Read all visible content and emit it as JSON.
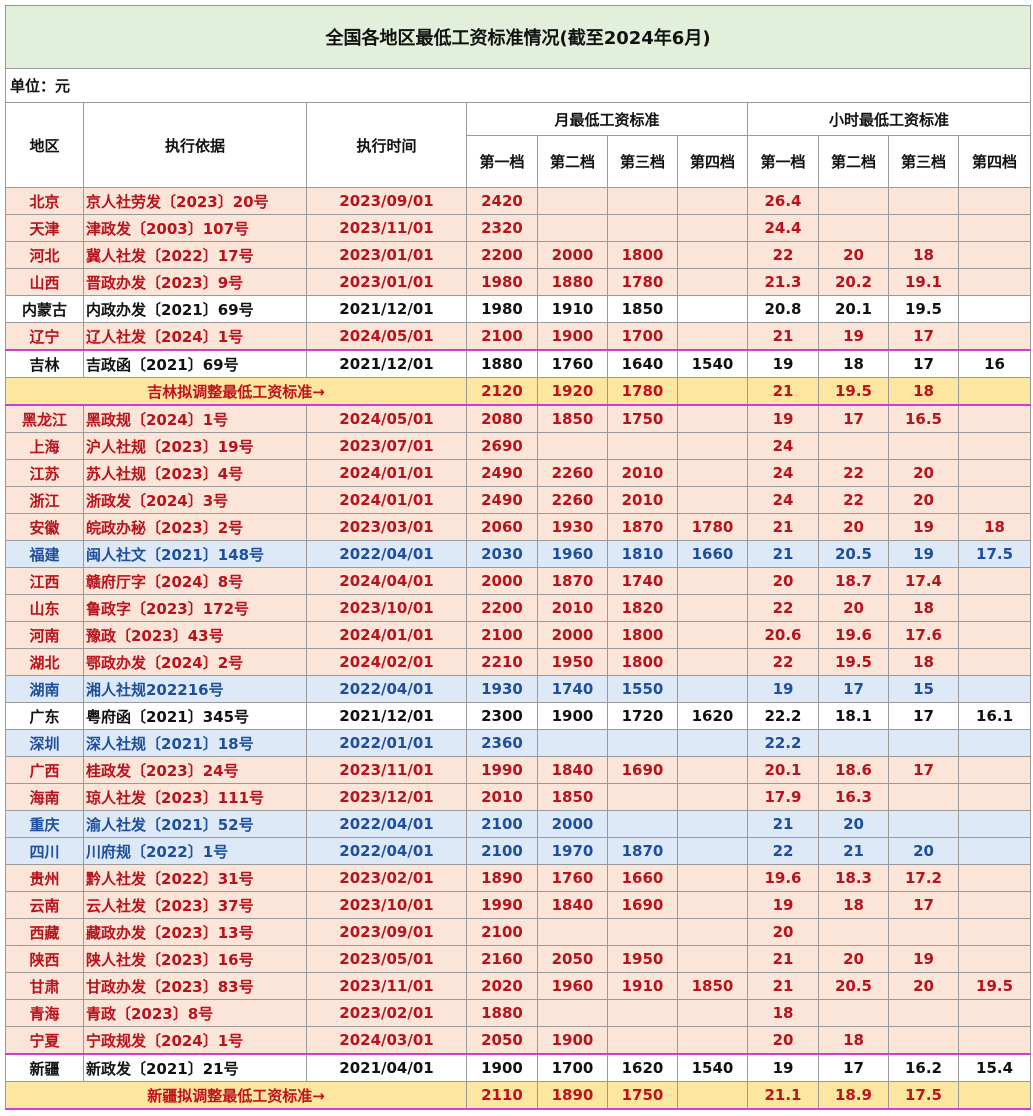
{
  "title": "全国各地区最低工资标准情况(截至2024年6月)",
  "unit": "单位：元",
  "headers": {
    "region": "地区",
    "basis": "执行依据",
    "date": "执行时间",
    "monthly": "月最低工资标准",
    "hourly": "小时最低工资标准",
    "tiers": [
      "第一档",
      "第二档",
      "第三档",
      "第四档"
    ]
  },
  "colors": {
    "red_text": "#b8121b",
    "blue_text": "#1d4f9e",
    "red_bg": "#fbe4d8",
    "blue_bg": "#dde9f7",
    "proposal_bg": "#fde6a0",
    "title_bg": "#e2efda",
    "highlight_border": "#d23cd6"
  },
  "rows": [
    {
      "group": "red",
      "region": "北京",
      "basis": "京人社劳发〔2023〕20号",
      "date": "2023/09/01",
      "monthly": [
        "2420",
        "",
        "",
        ""
      ],
      "hourly": [
        "26.4",
        "",
        "",
        ""
      ]
    },
    {
      "group": "red",
      "region": "天津",
      "basis": "津政发〔2003〕107号",
      "date": "2023/11/01",
      "monthly": [
        "2320",
        "",
        "",
        ""
      ],
      "hourly": [
        "24.4",
        "",
        "",
        ""
      ]
    },
    {
      "group": "red",
      "region": "河北",
      "basis": "冀人社发〔2022〕17号",
      "date": "2023/01/01",
      "monthly": [
        "2200",
        "2000",
        "1800",
        ""
      ],
      "hourly": [
        "22",
        "20",
        "18",
        ""
      ]
    },
    {
      "group": "red",
      "region": "山西",
      "basis": "晋政办发〔2023〕9号",
      "date": "2023/01/01",
      "monthly": [
        "1980",
        "1880",
        "1780",
        ""
      ],
      "hourly": [
        "21.3",
        "20.2",
        "19.1",
        ""
      ]
    },
    {
      "group": "black",
      "region": "内蒙古",
      "basis": "内政办发〔2021〕69号",
      "date": "2021/12/01",
      "monthly": [
        "1980",
        "1910",
        "1850",
        ""
      ],
      "hourly": [
        "20.8",
        "20.1",
        "19.5",
        ""
      ]
    },
    {
      "group": "red",
      "region": "辽宁",
      "basis": "辽人社发〔2024〕1号",
      "date": "2024/05/01",
      "monthly": [
        "2100",
        "1900",
        "1700",
        ""
      ],
      "hourly": [
        "21",
        "19",
        "17",
        ""
      ]
    },
    {
      "group": "black",
      "highlight": true,
      "region": "吉林",
      "basis": "吉政函〔2021〕69号",
      "date": "2021/12/01",
      "monthly": [
        "1880",
        "1760",
        "1640",
        "1540"
      ],
      "hourly": [
        "19",
        "18",
        "17",
        "16"
      ]
    },
    {
      "group": "proposal",
      "label": "吉林拟调整最低工资标准→",
      "monthly": [
        "2120",
        "1920",
        "1780",
        ""
      ],
      "hourly": [
        "21",
        "19.5",
        "18",
        ""
      ]
    },
    {
      "group": "red",
      "region": "黑龙江",
      "basis": "黑政规〔2024〕1号",
      "date": "2024/05/01",
      "monthly": [
        "2080",
        "1850",
        "1750",
        ""
      ],
      "hourly": [
        "19",
        "17",
        "16.5",
        ""
      ]
    },
    {
      "group": "red",
      "region": "上海",
      "basis": "沪人社规〔2023〕19号",
      "date": "2023/07/01",
      "monthly": [
        "2690",
        "",
        "",
        ""
      ],
      "hourly": [
        "24",
        "",
        "",
        ""
      ]
    },
    {
      "group": "red",
      "region": "江苏",
      "basis": "苏人社规〔2023〕4号",
      "date": "2024/01/01",
      "monthly": [
        "2490",
        "2260",
        "2010",
        ""
      ],
      "hourly": [
        "24",
        "22",
        "20",
        ""
      ]
    },
    {
      "group": "red",
      "region": "浙江",
      "basis": "浙政发〔2024〕3号",
      "date": "2024/01/01",
      "monthly": [
        "2490",
        "2260",
        "2010",
        ""
      ],
      "hourly": [
        "24",
        "22",
        "20",
        ""
      ]
    },
    {
      "group": "red",
      "region": "安徽",
      "basis": "皖政办秘〔2023〕2号",
      "date": "2023/03/01",
      "monthly": [
        "2060",
        "1930",
        "1870",
        "1780"
      ],
      "hourly": [
        "21",
        "20",
        "19",
        "18"
      ]
    },
    {
      "group": "blue",
      "region": "福建",
      "basis": "闽人社文〔2021〕148号",
      "date": "2022/04/01",
      "monthly": [
        "2030",
        "1960",
        "1810",
        "1660"
      ],
      "hourly": [
        "21",
        "20.5",
        "19",
        "17.5"
      ]
    },
    {
      "group": "red",
      "region": "江西",
      "basis": "赣府厅字〔2024〕8号",
      "date": "2024/04/01",
      "monthly": [
        "2000",
        "1870",
        "1740",
        ""
      ],
      "hourly": [
        "20",
        "18.7",
        "17.4",
        ""
      ]
    },
    {
      "group": "red",
      "region": "山东",
      "basis": "鲁政字〔2023〕172号",
      "date": "2023/10/01",
      "monthly": [
        "2200",
        "2010",
        "1820",
        ""
      ],
      "hourly": [
        "22",
        "20",
        "18",
        ""
      ]
    },
    {
      "group": "red",
      "region": "河南",
      "basis": "豫政〔2023〕43号",
      "date": "2024/01/01",
      "monthly": [
        "2100",
        "2000",
        "1800",
        ""
      ],
      "hourly": [
        "20.6",
        "19.6",
        "17.6",
        ""
      ]
    },
    {
      "group": "red",
      "region": "湖北",
      "basis": "鄂政办发〔2024〕2号",
      "date": "2024/02/01",
      "monthly": [
        "2210",
        "1950",
        "1800",
        ""
      ],
      "hourly": [
        "22",
        "19.5",
        "18",
        ""
      ]
    },
    {
      "group": "blue",
      "region": "湖南",
      "basis": "湘人社规202216号",
      "date": "2022/04/01",
      "monthly": [
        "1930",
        "1740",
        "1550",
        ""
      ],
      "hourly": [
        "19",
        "17",
        "15",
        ""
      ]
    },
    {
      "group": "black",
      "region": "广东",
      "basis": "粤府函〔2021〕345号",
      "date": "2021/12/01",
      "monthly": [
        "2300",
        "1900",
        "1720",
        "1620"
      ],
      "hourly": [
        "22.2",
        "18.1",
        "17",
        "16.1"
      ]
    },
    {
      "group": "blue",
      "region": "深圳",
      "basis": "深人社规〔2021〕18号",
      "date": "2022/01/01",
      "monthly": [
        "2360",
        "",
        "",
        ""
      ],
      "hourly": [
        "22.2",
        "",
        "",
        ""
      ]
    },
    {
      "group": "red",
      "region": "广西",
      "basis": "桂政发〔2023〕24号",
      "date": "2023/11/01",
      "monthly": [
        "1990",
        "1840",
        "1690",
        ""
      ],
      "hourly": [
        "20.1",
        "18.6",
        "17",
        ""
      ]
    },
    {
      "group": "red",
      "region": "海南",
      "basis": "琼人社发〔2023〕111号",
      "date": "2023/12/01",
      "monthly": [
        "2010",
        "1850",
        "",
        ""
      ],
      "hourly": [
        "17.9",
        "16.3",
        "",
        ""
      ]
    },
    {
      "group": "blue",
      "region": "重庆",
      "basis": "渝人社发〔2021〕52号",
      "date": "2022/04/01",
      "monthly": [
        "2100",
        "2000",
        "",
        ""
      ],
      "hourly": [
        "21",
        "20",
        "",
        ""
      ]
    },
    {
      "group": "blue",
      "region": "四川",
      "basis": "川府规〔2022〕1号",
      "date": "2022/04/01",
      "monthly": [
        "2100",
        "1970",
        "1870",
        ""
      ],
      "hourly": [
        "22",
        "21",
        "20",
        ""
      ]
    },
    {
      "group": "red",
      "region": "贵州",
      "basis": "黔人社发〔2022〕31号",
      "date": "2023/02/01",
      "monthly": [
        "1890",
        "1760",
        "1660",
        ""
      ],
      "hourly": [
        "19.6",
        "18.3",
        "17.2",
        ""
      ]
    },
    {
      "group": "red",
      "region": "云南",
      "basis": "云人社发〔2023〕37号",
      "date": "2023/10/01",
      "monthly": [
        "1990",
        "1840",
        "1690",
        ""
      ],
      "hourly": [
        "19",
        "18",
        "17",
        ""
      ]
    },
    {
      "group": "red",
      "region": "西藏",
      "basis": "藏政办发〔2023〕13号",
      "date": "2023/09/01",
      "monthly": [
        "2100",
        "",
        "",
        ""
      ],
      "hourly": [
        "20",
        "",
        "",
        ""
      ]
    },
    {
      "group": "red",
      "region": "陕西",
      "basis": "陕人社发〔2023〕16号",
      "date": "2023/05/01",
      "monthly": [
        "2160",
        "2050",
        "1950",
        ""
      ],
      "hourly": [
        "21",
        "20",
        "19",
        ""
      ]
    },
    {
      "group": "red",
      "region": "甘肃",
      "basis": "甘政办发〔2023〕83号",
      "date": "2023/11/01",
      "monthly": [
        "2020",
        "1960",
        "1910",
        "1850"
      ],
      "hourly": [
        "21",
        "20.5",
        "20",
        "19.5"
      ]
    },
    {
      "group": "red",
      "region": "青海",
      "basis": "青政〔2023〕8号",
      "date": "2023/02/01",
      "monthly": [
        "1880",
        "",
        "",
        ""
      ],
      "hourly": [
        "18",
        "",
        "",
        ""
      ]
    },
    {
      "group": "red",
      "region": "宁夏",
      "basis": "宁政规发〔2024〕1号",
      "date": "2024/03/01",
      "monthly": [
        "2050",
        "1900",
        "",
        ""
      ],
      "hourly": [
        "20",
        "18",
        "",
        ""
      ]
    },
    {
      "group": "black",
      "highlight": true,
      "region": "新疆",
      "basis": "新政发〔2021〕21号",
      "date": "2021/04/01",
      "monthly": [
        "1900",
        "1700",
        "1620",
        "1540"
      ],
      "hourly": [
        "19",
        "17",
        "16.2",
        "15.4"
      ]
    },
    {
      "group": "proposal",
      "label": "新疆拟调整最低工资标准→",
      "monthly": [
        "2110",
        "1890",
        "1750",
        ""
      ],
      "hourly": [
        "21.1",
        "18.9",
        "17.5",
        ""
      ]
    }
  ]
}
